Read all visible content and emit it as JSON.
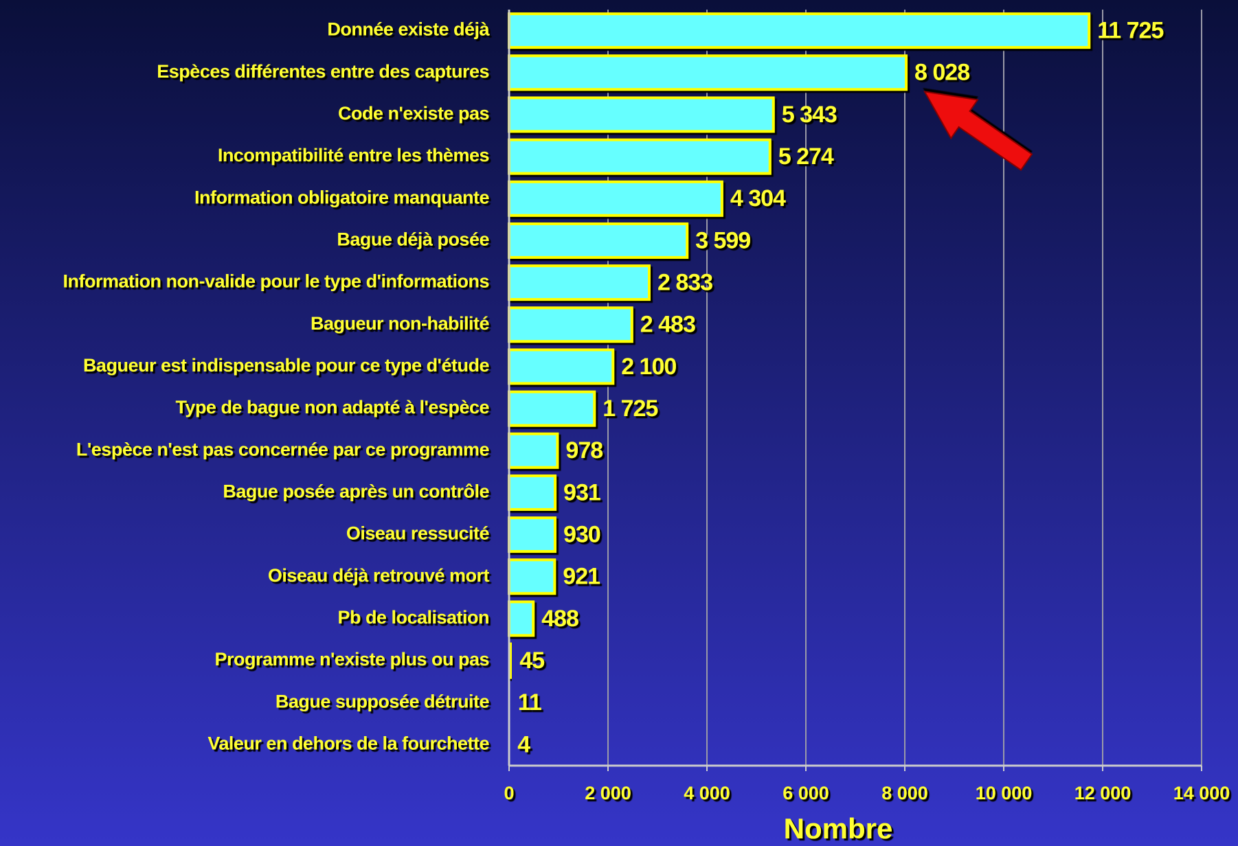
{
  "chart_data": {
    "type": "barh",
    "categories": [
      "Donnée existe déjà",
      "Espèces différentes entre des captures",
      "Code n'existe pas",
      "Incompatibilité entre les thèmes",
      "Information obligatoire manquante",
      "Bague déjà posée",
      "Information non-valide pour le type d'informations",
      "Bagueur non-habilité",
      "Bagueur est indispensable pour ce type d'étude",
      "Type de bague non adapté à l'espèce",
      "L'espèce n'est pas concernée par ce programme",
      "Bague posée après un contrôle",
      "Oiseau ressucité",
      "Oiseau déjà retrouvé mort",
      "Pb de localisation",
      "Programme n'existe plus ou pas",
      "Bague supposée détruite",
      "Valeur en dehors de la fourchette"
    ],
    "values": [
      11725,
      8028,
      5343,
      5274,
      4304,
      3599,
      2833,
      2483,
      2100,
      1725,
      978,
      931,
      930,
      921,
      488,
      45,
      11,
      4
    ],
    "value_labels": [
      "11 725",
      "8 028",
      "5 343",
      "5 274",
      "4 304",
      "3 599",
      "2 833",
      "2 483",
      "2 100",
      "1 725",
      "978",
      "931",
      "930",
      "921",
      "488",
      "45",
      "11",
      "4"
    ],
    "color": "#66ffff",
    "xlabel": "Nombre",
    "xlim": [
      0,
      14000
    ],
    "xticks": [
      0,
      {
        "value": 2000,
        "label": "2 000"
      },
      {
        "value": 4000,
        "label": "4 000"
      },
      {
        "value": 6000,
        "label": "6 000"
      },
      {
        "value": 8000,
        "label": "8 000"
      },
      {
        "value": 10000,
        "label": "10 000"
      },
      {
        "value": 12000,
        "label": "12 000"
      },
      {
        "value": 14000,
        "label": "14 000"
      }
    ],
    "grid": true
  }
}
